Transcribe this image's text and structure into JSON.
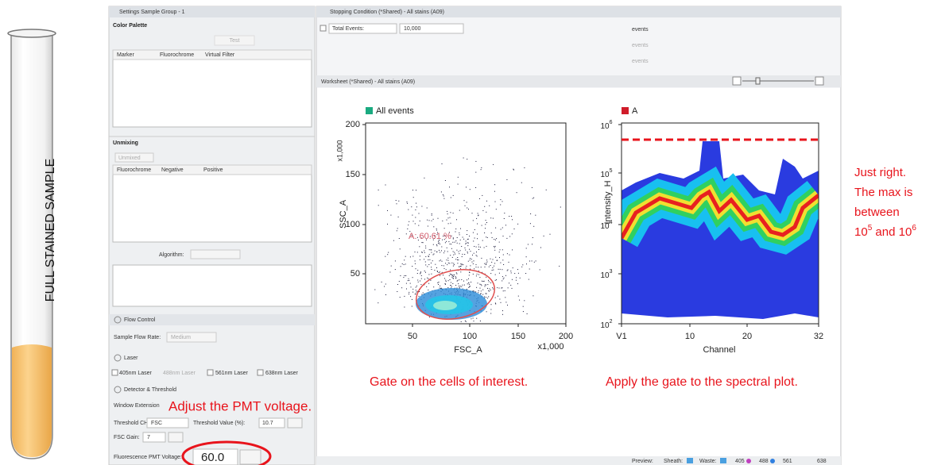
{
  "tube_label": "FULL STAINED SAMPLE",
  "settings": {
    "title": "Settings  Sample Group - 1",
    "color_palette": {
      "title": "Color Palette",
      "button": "Test",
      "columns": [
        "Marker",
        "Fluorochrome",
        "Virtual Filter"
      ]
    },
    "unmixing": {
      "title": "Unmixing",
      "checkbox": "Unmixed",
      "columns": [
        "Fluorochrome",
        "Negative",
        "Positive"
      ],
      "algorithm_label": "Algorithm:"
    },
    "flow_control": {
      "title": "Flow Control",
      "flow_rate_label": "Sample Flow Rate:",
      "flow_rate": "Medium"
    },
    "laser": {
      "title": "Laser",
      "lasers": [
        "405nm Laser",
        "488nm Laser",
        "561nm Laser",
        "638nm Laser"
      ]
    },
    "detector": {
      "title": "Detector & Threshold",
      "window_extension": "Window Extension",
      "threshold_ch_label": "Threshold CH:",
      "threshold_ch": "FSC",
      "threshold_value_label": "Threshold Value (%):",
      "threshold_value": "10.7",
      "fsc_gain_label": "FSC Gain:",
      "fsc_gain": "7",
      "pmt_label": "Fluorescence PMT Voltage:",
      "pmt_value": "60.0"
    }
  },
  "stopping": {
    "title": "Stopping Condition (*Shared) - All stains (A09)",
    "total_events_label": "Total Events:",
    "total_events": "10,000",
    "unit": "events"
  },
  "worksheet": {
    "title": "Worksheet (*Shared) - All stains (A09)",
    "scatter": {
      "legend": "All events",
      "gate_label": "A: 60.61 %",
      "x_label": "FSC_A",
      "y_label": "SSC_A",
      "scale_label": "x1,000",
      "xticks": [
        "50",
        "100",
        "150",
        "200"
      ],
      "yticks": [
        "50",
        "100",
        "150",
        "200"
      ]
    },
    "spectral": {
      "legend": "A",
      "x_label": "Channel",
      "y_label": "Intensity_H",
      "xticks": [
        "V1",
        "10",
        "20",
        "32"
      ],
      "yticks": [
        {
          "base": "10",
          "exp": "2"
        },
        {
          "base": "10",
          "exp": "3"
        },
        {
          "base": "10",
          "exp": "4"
        },
        {
          "base": "10",
          "exp": "5"
        },
        {
          "base": "10",
          "exp": "6"
        }
      ]
    }
  },
  "status": {
    "preview": "Preview:",
    "sheath": "Sheath:",
    "waste": "Waste:",
    "lasers": [
      "405",
      "488",
      "561",
      "638"
    ]
  },
  "annotations": {
    "pmt": "Adjust the PMT voltage.",
    "gate": "Gate on the cells of interest.",
    "apply": "Apply the gate to the spectral plot.",
    "max": {
      "lines": [
        "Just right.",
        "The max is",
        "between"
      ],
      "base1": "10",
      "exp1": "5",
      "mid": " and ",
      "base2": "10",
      "exp2": "6"
    }
  }
}
